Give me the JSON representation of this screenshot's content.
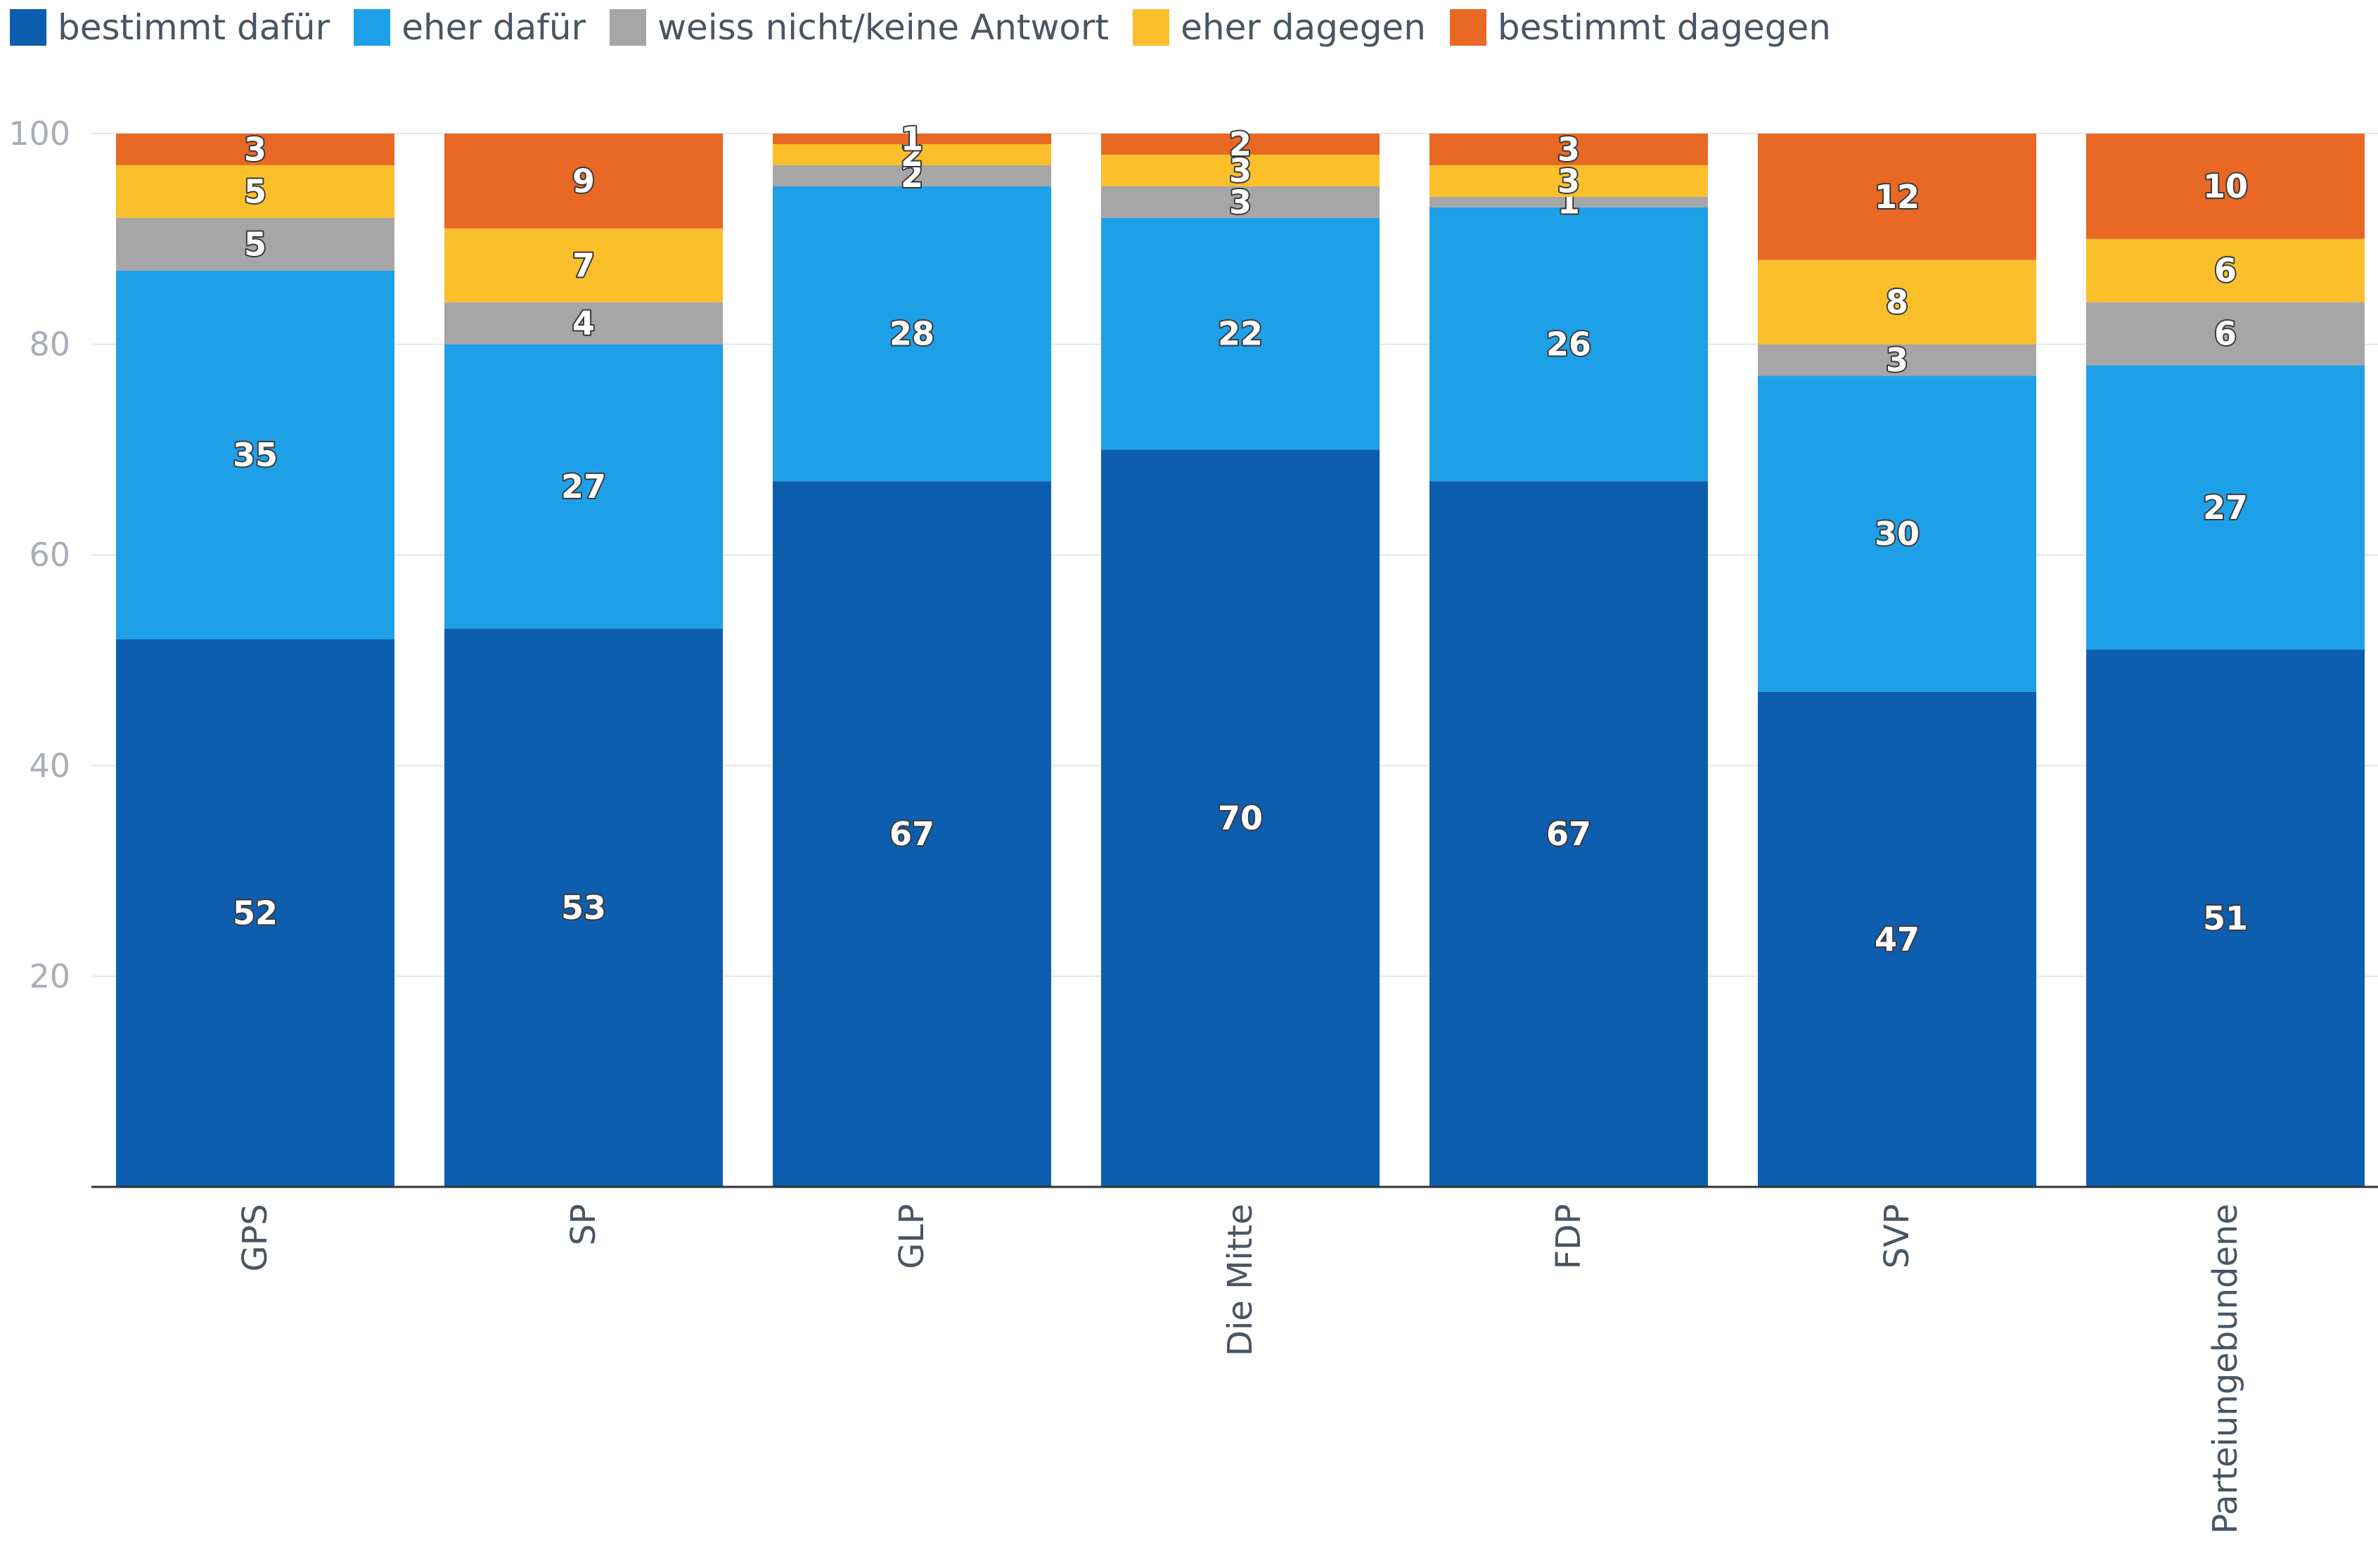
{
  "chart_data": {
    "type": "bar",
    "stacked": true,
    "categories": [
      "GPS",
      "SP",
      "GLP",
      "Die Mitte",
      "FDP",
      "SVP",
      "Parteiungebundene"
    ],
    "series": [
      {
        "name": "bestimmt dafür",
        "color": "#0d5eaf",
        "values": [
          52,
          53,
          67,
          70,
          67,
          47,
          51
        ]
      },
      {
        "name": "eher dafür",
        "color": "#1ea0e8",
        "values": [
          35,
          27,
          28,
          22,
          26,
          30,
          27
        ]
      },
      {
        "name": "weiss nicht/keine Antwort",
        "color": "#a6a6a6",
        "values": [
          5,
          4,
          2,
          3,
          1,
          3,
          6
        ]
      },
      {
        "name": "eher dagegen",
        "color": "#fbbf2b",
        "values": [
          5,
          7,
          2,
          3,
          3,
          8,
          6
        ]
      },
      {
        "name": "bestimmt dagegen",
        "color": "#e86824",
        "values": [
          3,
          9,
          1,
          2,
          3,
          12,
          10
        ]
      }
    ],
    "ylim": [
      0,
      100
    ],
    "yticks": [
      20,
      40,
      60,
      80,
      100
    ],
    "grid": true,
    "legend": "top-left"
  }
}
